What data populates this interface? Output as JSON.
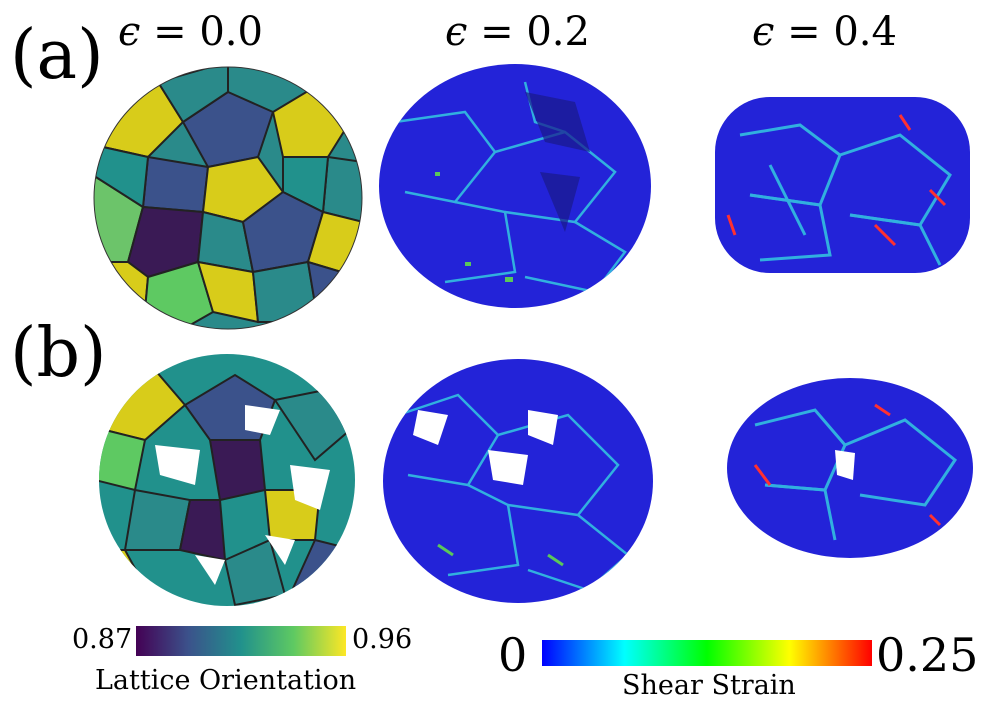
{
  "panels": {
    "a": "(a)",
    "b": "(b)"
  },
  "strain_labels": {
    "s0": {
      "symbol": "ϵ",
      "rest": " = 0.0"
    },
    "s1": {
      "symbol": "ϵ",
      "rest": " = 0.2"
    },
    "s2": {
      "symbol": "ϵ",
      "rest": " = 0.4"
    }
  },
  "orientation_colorbar": {
    "min": "0.87",
    "max": "0.96",
    "title": "Lattice Orientation",
    "colors": [
      "#440154",
      "#3b528b",
      "#21918c",
      "#5ec962",
      "#fde725"
    ]
  },
  "shear_colorbar": {
    "min": "0",
    "max": "0.25",
    "title": "Shear Strain",
    "colors": [
      "#0000ff",
      "#00ffff",
      "#00ff00",
      "#ffff00",
      "#ff0000"
    ]
  },
  "colors": {
    "deep_blue": "#2323d8",
    "viridis_yellow": "#d8cc1a",
    "viridis_teal": "#2a8a8a",
    "viridis_purple": "#3a1a55"
  }
}
